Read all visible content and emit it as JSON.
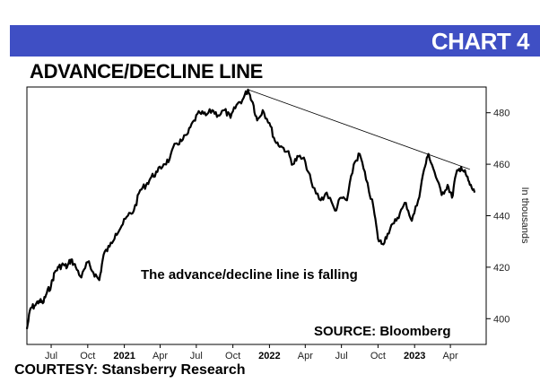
{
  "header": {
    "banner": "CHART 4",
    "title": "ADVANCE/DECLINE LINE",
    "courtesy": "COURTESY: Stansberry Research",
    "banner_color": "#3f4fc4"
  },
  "chart_data": {
    "type": "line",
    "title": "ADVANCE/DECLINE LINE",
    "ylabel": "In thousands",
    "xlabel": "",
    "ylim": [
      390,
      490
    ],
    "y_ticks": [
      400,
      420,
      440,
      460,
      480
    ],
    "x_range": [
      "2020-05-01",
      "2023-06-30"
    ],
    "x_ticks": [
      {
        "label": "Jul",
        "date": "2020-07-01",
        "bold": false
      },
      {
        "label": "Oct",
        "date": "2020-10-01",
        "bold": false
      },
      {
        "label": "2021",
        "date": "2021-01-01",
        "bold": true
      },
      {
        "label": "Apr",
        "date": "2021-04-01",
        "bold": false
      },
      {
        "label": "Jul",
        "date": "2021-07-01",
        "bold": false
      },
      {
        "label": "Oct",
        "date": "2021-10-01",
        "bold": false
      },
      {
        "label": "2022",
        "date": "2022-01-01",
        "bold": true
      },
      {
        "label": "Apr",
        "date": "2022-04-01",
        "bold": false
      },
      {
        "label": "Jul",
        "date": "2022-07-01",
        "bold": false
      },
      {
        "label": "Oct",
        "date": "2022-10-01",
        "bold": false
      },
      {
        "label": "2023",
        "date": "2023-01-01",
        "bold": true
      },
      {
        "label": "Apr",
        "date": "2023-04-01",
        "bold": false
      }
    ],
    "grid": false,
    "annotations": [
      {
        "text": "The advance/decline line is falling"
      },
      {
        "text": "SOURCE: Bloomberg"
      }
    ],
    "trendline": {
      "from": {
        "x": "2021-11-08",
        "y": 489
      },
      "to": {
        "x": "2023-05-20",
        "y": 458
      }
    },
    "series": [
      {
        "name": "",
        "color": "#000000",
        "points": [
          [
            "2020-05-01",
            396
          ],
          [
            "2020-05-10",
            404
          ],
          [
            "2020-05-20",
            405
          ],
          [
            "2020-06-01",
            407
          ],
          [
            "2020-06-10",
            406
          ],
          [
            "2020-06-20",
            410
          ],
          [
            "2020-07-01",
            413
          ],
          [
            "2020-07-10",
            418
          ],
          [
            "2020-07-20",
            420
          ],
          [
            "2020-08-01",
            421
          ],
          [
            "2020-08-10",
            420
          ],
          [
            "2020-08-20",
            423
          ],
          [
            "2020-09-01",
            420
          ],
          [
            "2020-09-15",
            416
          ],
          [
            "2020-10-01",
            422
          ],
          [
            "2020-10-15",
            418
          ],
          [
            "2020-10-30",
            415
          ],
          [
            "2020-11-10",
            425
          ],
          [
            "2020-11-25",
            428
          ],
          [
            "2020-12-10",
            433
          ],
          [
            "2020-12-25",
            436
          ],
          [
            "2021-01-10",
            440
          ],
          [
            "2021-01-25",
            442
          ],
          [
            "2021-02-10",
            450
          ],
          [
            "2021-02-25",
            452
          ],
          [
            "2021-03-10",
            455
          ],
          [
            "2021-03-25",
            457
          ],
          [
            "2021-04-10",
            460
          ],
          [
            "2021-04-25",
            462
          ],
          [
            "2021-05-10",
            468
          ],
          [
            "2021-05-25",
            469
          ],
          [
            "2021-06-10",
            472
          ],
          [
            "2021-06-25",
            477
          ],
          [
            "2021-07-10",
            480
          ],
          [
            "2021-07-25",
            479
          ],
          [
            "2021-08-10",
            481
          ],
          [
            "2021-08-25",
            479
          ],
          [
            "2021-09-10",
            481
          ],
          [
            "2021-09-25",
            478
          ],
          [
            "2021-10-10",
            483
          ],
          [
            "2021-10-25",
            485
          ],
          [
            "2021-11-08",
            489
          ],
          [
            "2021-11-20",
            484
          ],
          [
            "2021-12-01",
            477
          ],
          [
            "2021-12-15",
            481
          ],
          [
            "2022-01-01",
            476
          ],
          [
            "2022-01-15",
            469
          ],
          [
            "2022-01-30",
            467
          ],
          [
            "2022-02-15",
            465
          ],
          [
            "2022-03-01",
            460
          ],
          [
            "2022-03-15",
            463
          ],
          [
            "2022-04-01",
            461
          ],
          [
            "2022-04-20",
            451
          ],
          [
            "2022-05-10",
            446
          ],
          [
            "2022-05-25",
            449
          ],
          [
            "2022-06-15",
            442
          ],
          [
            "2022-06-30",
            447
          ],
          [
            "2022-07-15",
            446
          ],
          [
            "2022-08-01",
            460
          ],
          [
            "2022-08-16",
            464
          ],
          [
            "2022-09-01",
            454
          ],
          [
            "2022-09-20",
            443
          ],
          [
            "2022-10-01",
            431
          ],
          [
            "2022-10-12",
            429
          ],
          [
            "2022-10-25",
            433
          ],
          [
            "2022-11-10",
            437
          ],
          [
            "2022-11-25",
            441
          ],
          [
            "2022-12-10",
            445
          ],
          [
            "2022-12-25",
            438
          ],
          [
            "2023-01-10",
            446
          ],
          [
            "2023-01-25",
            458
          ],
          [
            "2023-02-05",
            464
          ],
          [
            "2023-02-20",
            457
          ],
          [
            "2023-03-10",
            448
          ],
          [
            "2023-03-25",
            452
          ],
          [
            "2023-04-05",
            447
          ],
          [
            "2023-04-15",
            456
          ],
          [
            "2023-04-28",
            459
          ],
          [
            "2023-05-10",
            456
          ],
          [
            "2023-05-20",
            452
          ],
          [
            "2023-06-01",
            449
          ]
        ]
      }
    ]
  }
}
